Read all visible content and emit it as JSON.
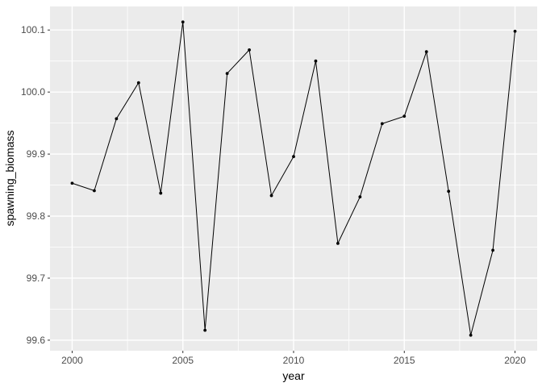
{
  "chart_data": {
    "type": "line",
    "title": "",
    "xlabel": "year",
    "ylabel": "spawning_biomass",
    "marker": "point",
    "grid": true,
    "legend": false,
    "x": [
      2000,
      2001,
      2002,
      2003,
      2004,
      2005,
      2006,
      2007,
      2008,
      2009,
      2010,
      2011,
      2012,
      2013,
      2014,
      2015,
      2016,
      2017,
      2018,
      2019,
      2020
    ],
    "values": [
      99.853,
      99.841,
      99.957,
      100.015,
      99.837,
      100.113,
      99.616,
      100.03,
      100.068,
      99.833,
      99.896,
      100.05,
      99.756,
      99.831,
      99.949,
      99.961,
      100.065,
      99.84,
      99.608,
      99.745,
      100.098
    ],
    "series": [
      {
        "name": "spawning_biomass",
        "values": [
          99.853,
          99.841,
          99.957,
          100.015,
          99.837,
          100.113,
          99.616,
          100.03,
          100.068,
          99.833,
          99.896,
          100.05,
          99.756,
          99.831,
          99.949,
          99.961,
          100.065,
          99.84,
          99.608,
          99.745,
          100.098
        ]
      }
    ],
    "xlim": [
      1999,
      2021
    ],
    "ylim": [
      99.583,
      100.138
    ],
    "x_ticks": [
      2000,
      2005,
      2010,
      2015,
      2020
    ],
    "x_tick_labels": [
      "2000",
      "2005",
      "2010",
      "2015",
      "2020"
    ],
    "x_minor_ticks": [
      2002.5,
      2007.5,
      2012.5,
      2017.5
    ],
    "y_ticks": [
      99.6,
      99.7,
      99.8,
      99.9,
      100.0,
      100.1
    ],
    "y_tick_labels": [
      "99.6",
      "99.7",
      "99.8",
      "99.9",
      "100.0",
      "100.1"
    ],
    "y_minor_ticks": [
      99.65,
      99.75,
      99.85,
      99.95,
      100.05
    ],
    "colors": {
      "background": "#FFFFFF",
      "panel_background": "#EBEBEB",
      "grid_major": "#FFFFFF",
      "grid_minor": "#FFFFFF",
      "line": "#000000",
      "point": "#000000",
      "tick_mark": "#333333",
      "tick_label": "#4D4D4D",
      "axis_title": "#000000"
    }
  }
}
